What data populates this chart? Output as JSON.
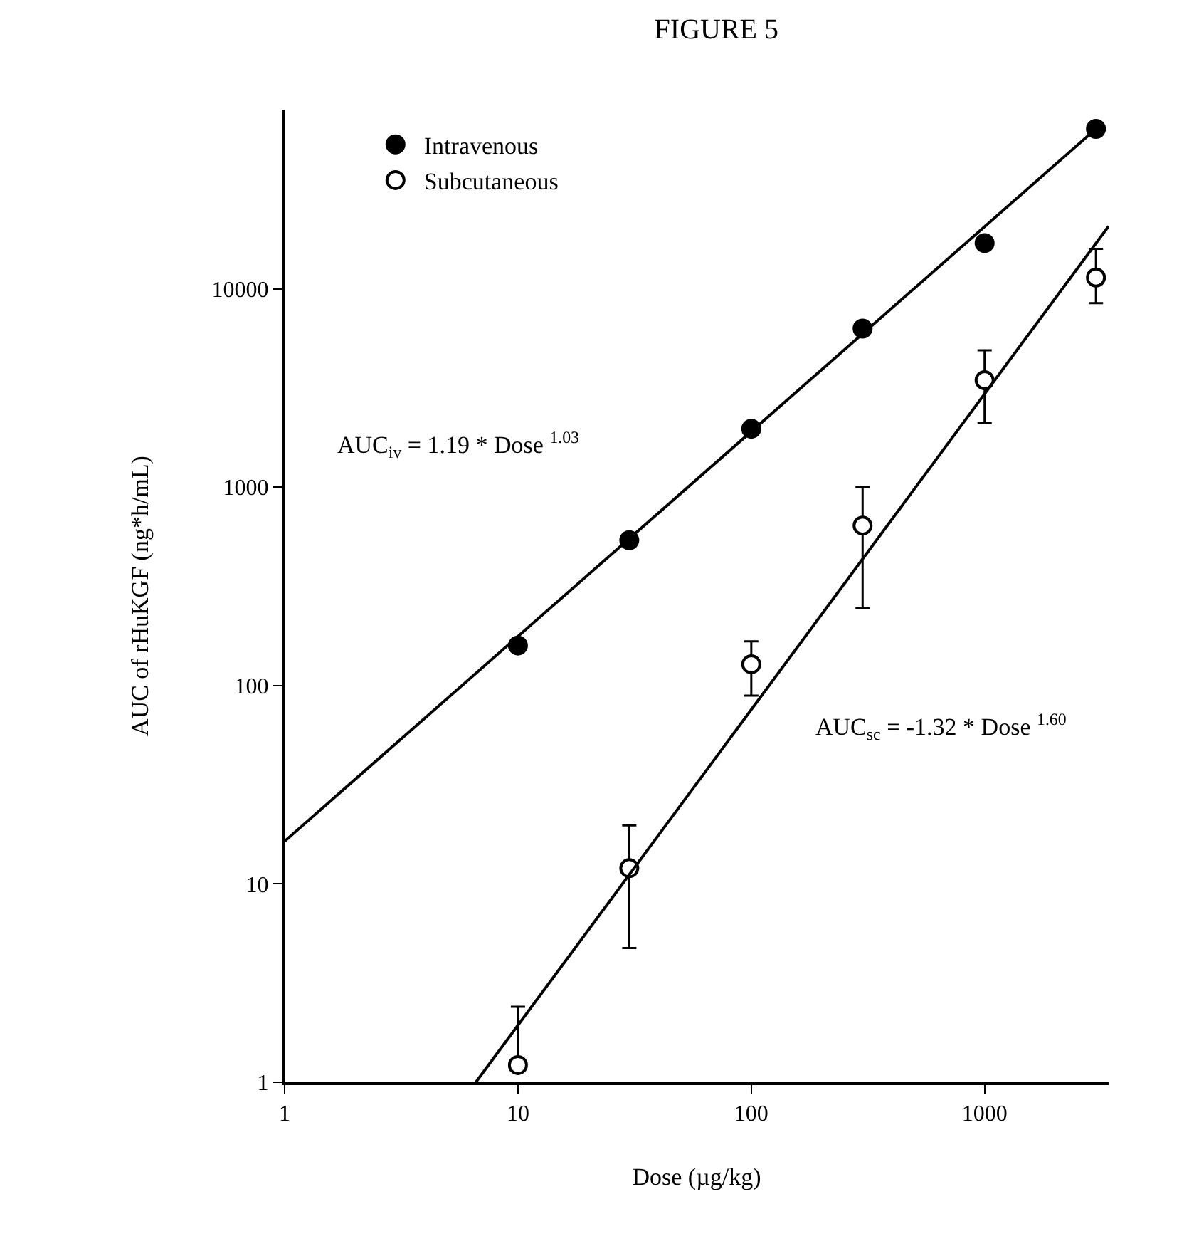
{
  "chart_data": {
    "type": "scatter",
    "title": "FIGURE 5",
    "xlabel": "Dose (µg/kg)",
    "ylabel": "AUC of rHuKGF (ng*h/mL)",
    "x": [
      10,
      30,
      100,
      300,
      1000,
      3000
    ],
    "series": [
      {
        "name": "Intravenous",
        "color": "#000000",
        "marker": "circle",
        "values": [
          159,
          540,
          1970,
          6300,
          17000,
          64000
        ]
      },
      {
        "name": "Subcutaneous",
        "color": "#000000",
        "marker": "circle",
        "values": [
          1.22,
          12,
          128,
          640,
          3460,
          11400
        ],
        "errors": [
          [
            1.22,
            2.4
          ],
          [
            4.75,
            19.7
          ],
          [
            89,
            167
          ],
          [
            245,
            1000
          ],
          [
            2100,
            4900
          ],
          [
            8470,
            15900
          ]
        ]
      },
      {
        "type": "line",
        "color": "#000000",
        "marker": "none",
        "x": [
          1,
          3000
        ],
        "values": [
          16.4,
          64000
        ]
      },
      {
        "type": "line",
        "color": "#000000",
        "marker": "none",
        "x": [
          6.6,
          3400
        ],
        "values": [
          1,
          20700
        ]
      }
    ],
    "annotations": [
      "AUC$_{iv}$ = 1.19 * Dose $^{1.03}$",
      "AUC$_{sc}$ = -1.32 * Dose $^{1.60}$"
    ],
    "log": "xy",
    "xlim": [
      1,
      3400
    ],
    "ylim": [
      1,
      80000
    ],
    "xticks": [
      1,
      10,
      100,
      1000
    ],
    "yticks": [
      1,
      10,
      100,
      1000,
      10000
    ],
    "grid": false,
    "legend": "top left",
    "line_style": "solid"
  }
}
